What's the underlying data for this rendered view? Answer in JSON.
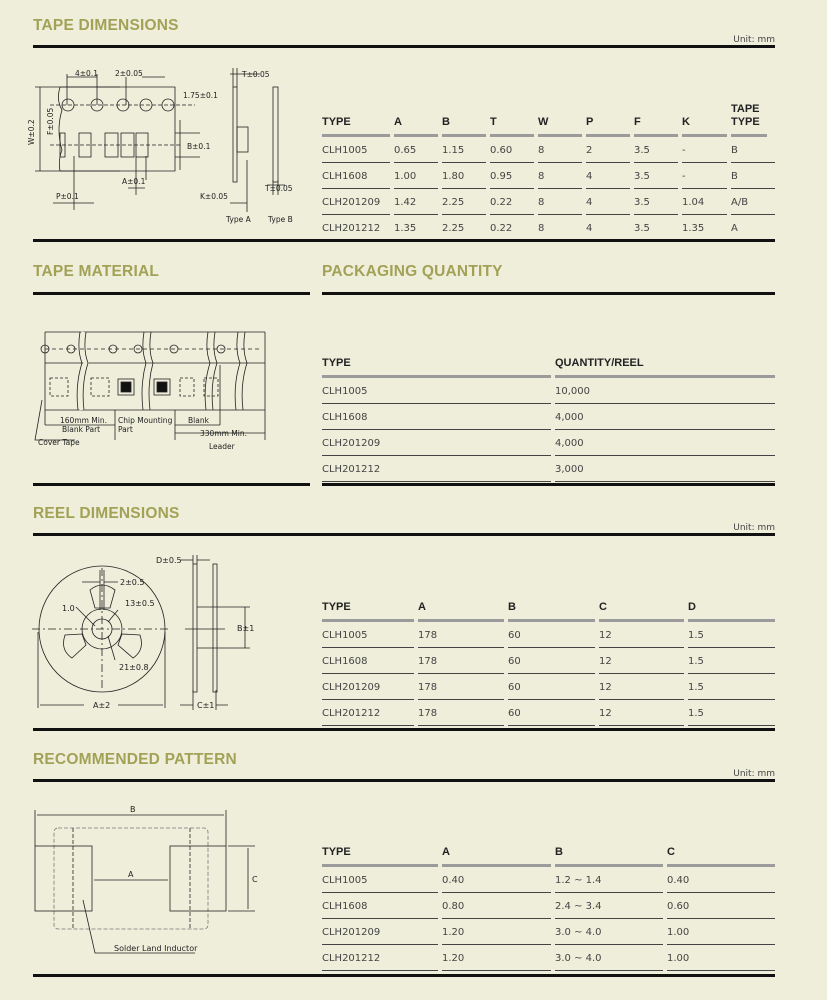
{
  "tape_dimensions": {
    "title": "TAPE DIMENSIONS",
    "unit": "Unit: mm",
    "diagram_labels": {
      "pitch_hole": "4±0.1",
      "hole_offset": "2±0.05",
      "edge": "1.75±0.1",
      "width": "W±0.2",
      "f": "F±0.05",
      "b": "B±0.1",
      "a": "A±0.1",
      "p": "P±0.1",
      "k": "K±0.05",
      "t_top": "T±0.05",
      "t_bottom": "T±0.05",
      "type_a": "Type A",
      "type_b": "Type B"
    },
    "table": {
      "columns": [
        "TYPE",
        "A",
        "B",
        "T",
        "W",
        "P",
        "F",
        "K",
        "TAPE TYPE"
      ],
      "rows": [
        [
          "CLH1005",
          "0.65",
          "1.15",
          "0.60",
          "8",
          "2",
          "3.5",
          "-",
          "B"
        ],
        [
          "CLH1608",
          "1.00",
          "1.80",
          "0.95",
          "8",
          "4",
          "3.5",
          "-",
          "B"
        ],
        [
          "CLH201209",
          "1.42",
          "2.25",
          "0.22",
          "8",
          "4",
          "3.5",
          "1.04",
          "A/B"
        ],
        [
          "CLH201212",
          "1.35",
          "2.25",
          "0.22",
          "8",
          "4",
          "3.5",
          "1.35",
          "A"
        ]
      ]
    }
  },
  "tape_material": {
    "title": "TAPE MATERIAL",
    "diagram_labels": {
      "blank_len": "160mm Min.",
      "blank_part": "Blank Part",
      "chip": "Chip Mounting",
      "chip2": "Part",
      "blank": "Blank",
      "leader_len": "330mm Min.",
      "leader": "Leader",
      "cover": "Cover Tape"
    }
  },
  "packaging_quantity": {
    "title": "PACKAGING QUANTITY",
    "table": {
      "columns": [
        "TYPE",
        "QUANTITY/REEL"
      ],
      "rows": [
        [
          "CLH1005",
          "10,000"
        ],
        [
          "CLH1608",
          "4,000"
        ],
        [
          "CLH201209",
          "4,000"
        ],
        [
          "CLH201212",
          "3,000"
        ]
      ]
    }
  },
  "reel_dimensions": {
    "title": "REEL DIMENSIONS",
    "unit": "Unit: mm",
    "diagram_labels": {
      "d": "D±0.5",
      "slot": "2±0.5",
      "hub": "13±0.5",
      "r": "1.0",
      "inner": "21±0.8",
      "b": "B±1",
      "a": "A±2",
      "c": "C±1"
    },
    "table": {
      "columns": [
        "TYPE",
        "A",
        "B",
        "C",
        "D"
      ],
      "rows": [
        [
          "CLH1005",
          "178",
          "60",
          "12",
          "1.5"
        ],
        [
          "CLH1608",
          "178",
          "60",
          "12",
          "1.5"
        ],
        [
          "CLH201209",
          "178",
          "60",
          "12",
          "1.5"
        ],
        [
          "CLH201212",
          "178",
          "60",
          "12",
          "1.5"
        ]
      ]
    }
  },
  "recommended_pattern": {
    "title": "RECOMMENDED PATTERN",
    "unit": "Unit: mm",
    "diagram_labels": {
      "a": "A",
      "b": "B",
      "c": "C",
      "solder": "Solder Land Inductor"
    },
    "table": {
      "columns": [
        "TYPE",
        "A",
        "B",
        "C"
      ],
      "rows": [
        [
          "CLH1005",
          "0.40",
          "1.2 ~ 1.4",
          "0.40"
        ],
        [
          "CLH1608",
          "0.80",
          "2.4 ~ 3.4",
          "0.60"
        ],
        [
          "CLH201209",
          "1.20",
          "3.0 ~ 4.0",
          "1.00"
        ],
        [
          "CLH201212",
          "1.20",
          "3.0 ~ 4.0",
          "1.00"
        ]
      ]
    }
  },
  "colors": {
    "background": "#eeeedb",
    "heading": "#a2a257",
    "rule": "#111111",
    "table_header_rule": "#9b9b9b"
  }
}
